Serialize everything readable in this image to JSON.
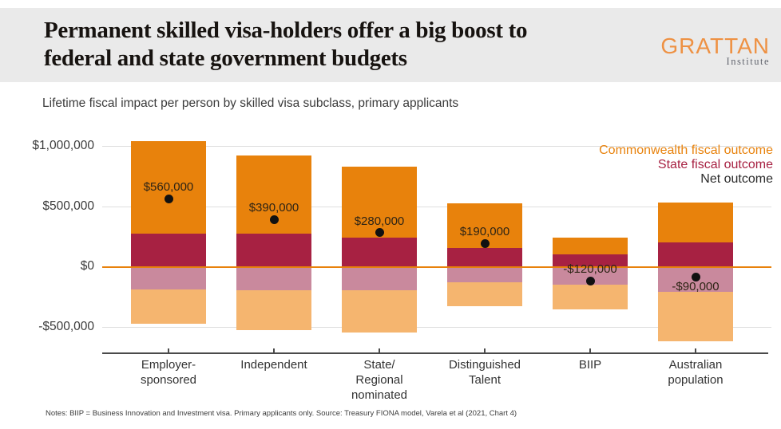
{
  "header": {
    "title": "Permanent skilled visa-holders offer a big boost to\nfederal and state government budgets",
    "logo": {
      "name": "GRATTAN",
      "sub": "Institute",
      "color": "#EE9143"
    }
  },
  "subtitle": "Lifetime fiscal impact per person by skilled visa subclass, primary applicants",
  "footnote": "Notes: BIIP = Business Innovation and Investment visa. Primary applicants only. Source: Treasury FIONA model, Varela et al (2021, Chart 4)",
  "chart_data": {
    "type": "bar",
    "stacked": true,
    "title": "Lifetime fiscal impact per person by skilled visa subclass, primary applicants",
    "categories": [
      "Employer-\nsponsored",
      "Independent",
      "State/\nRegional\nnominated",
      "Distinguished\nTalent",
      "BIIP",
      "Australian\npopulation"
    ],
    "series": [
      {
        "name": "Commonwealth fiscal outcome",
        "positive_values": [
          770000,
          650000,
          590000,
          370000,
          140000,
          330000
        ],
        "negative_values": [
          -290000,
          -330000,
          -350000,
          -200000,
          -210000,
          -410000
        ],
        "color_positive": "#E8820C",
        "color_negative": "#F5B56F"
      },
      {
        "name": "State fiscal outcome",
        "positive_values": [
          270000,
          270000,
          240000,
          150000,
          100000,
          200000
        ],
        "negative_values": [
          -190000,
          -200000,
          -200000,
          -130000,
          -150000,
          -210000
        ],
        "color_positive": "#A72142",
        "color_negative": "#C9899D"
      }
    ],
    "net": {
      "name": "Net outcome",
      "values": [
        560000,
        390000,
        280000,
        190000,
        -120000,
        -90000
      ],
      "labels": [
        "$560,000",
        "$390,000",
        "$280,000",
        "$190,000",
        "-$120,000",
        "-$90,000"
      ],
      "label_placement": [
        "above",
        "above",
        "above",
        "above",
        "above",
        "below"
      ],
      "dot_color": "#111111"
    },
    "y_axis": {
      "tick_values": [
        1000000,
        500000,
        0,
        -500000
      ],
      "tick_labels": [
        "$1,000,000",
        "$500,000",
        "$0",
        "-$500,000"
      ],
      "zero_line_color": "#E8820C",
      "grid_color": "#DEDEDE"
    },
    "legend": [
      {
        "label": "Commonwealth fiscal outcome",
        "color": "#E8820C"
      },
      {
        "label": "State fiscal outcome",
        "color": "#A72142"
      },
      {
        "label": "Net outcome",
        "color": "#2B2B2B"
      }
    ],
    "ylim": [
      -700000,
      1100000
    ],
    "grid": true,
    "legend_position": "top-right",
    "xlabel": "",
    "ylabel": "Lifetime fiscal impact per person ($)"
  }
}
